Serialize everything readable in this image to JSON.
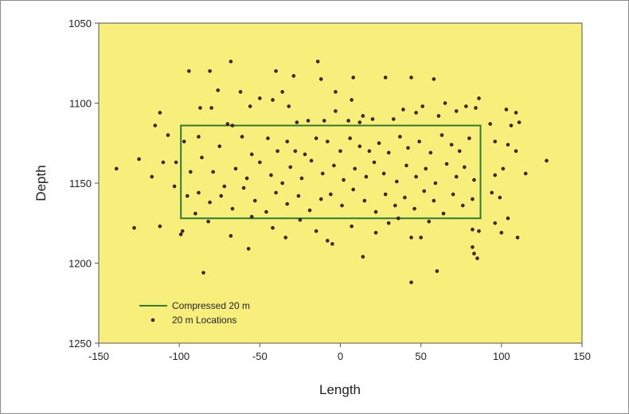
{
  "chart_data": {
    "type": "scatter",
    "title": "",
    "xlabel": "Length",
    "ylabel": "Depth",
    "xlim": [
      -150,
      150
    ],
    "ylim": [
      1050,
      1250
    ],
    "y_inverted": true,
    "x_ticks": [
      -150,
      -100,
      -50,
      0,
      50,
      100,
      150
    ],
    "y_ticks": [
      1050,
      1100,
      1150,
      1200,
      1250
    ],
    "grid": false,
    "plot_background": "#f7ee7c",
    "legend_position": "bottom-left",
    "series": [
      {
        "name": "Compressed 20 m",
        "kind": "rectangle",
        "color": "#2e7d32",
        "x_range": [
          -99,
          87
        ],
        "y_range": [
          1114,
          1172
        ]
      },
      {
        "name": "20 m Locations",
        "kind": "points",
        "color": "#3a2424",
        "points": [
          [
            -94,
            1080
          ],
          [
            -81,
            1080
          ],
          [
            -68,
            1074
          ],
          [
            -40,
            1080
          ],
          [
            -29,
            1083
          ],
          [
            -14,
            1074
          ],
          [
            -36,
            1093
          ],
          [
            -12,
            1085
          ],
          [
            -3,
            1093
          ],
          [
            7,
            1098
          ],
          [
            8,
            1084
          ],
          [
            14,
            1108
          ],
          [
            28,
            1084
          ],
          [
            44,
            1084
          ],
          [
            58,
            1085
          ],
          [
            61,
            1108
          ],
          [
            86,
            1097
          ],
          [
            -76,
            1092
          ],
          [
            -62,
            1093
          ],
          [
            -87,
            1103
          ],
          [
            -80,
            1103
          ],
          [
            -67,
            1114
          ],
          [
            -56,
            1102
          ],
          [
            -50,
            1097
          ],
          [
            -42,
            1098
          ],
          [
            -32,
            1102
          ],
          [
            -27,
            1112
          ],
          [
            -20,
            1111
          ],
          [
            -10,
            1111
          ],
          [
            -3,
            1105
          ],
          [
            5,
            1111
          ],
          [
            12,
            1112
          ],
          [
            20,
            1110
          ],
          [
            33,
            1110
          ],
          [
            39,
            1104
          ],
          [
            47,
            1106
          ],
          [
            51,
            1102
          ],
          [
            65,
            1100
          ],
          [
            72,
            1105
          ],
          [
            78,
            1102
          ],
          [
            84,
            1103
          ],
          [
            93,
            1113
          ],
          [
            103,
            1104
          ],
          [
            106,
            1114
          ],
          [
            109,
            1106
          ],
          [
            111,
            1112
          ],
          [
            -112,
            1106
          ],
          [
            -115,
            1114
          ],
          [
            -107,
            1120
          ],
          [
            -97,
            1124
          ],
          [
            -88,
            1121
          ],
          [
            -75,
            1127
          ],
          [
            -70,
            1113
          ],
          [
            -61,
            1121
          ],
          [
            -55,
            1132
          ],
          [
            -45,
            1122
          ],
          [
            -39,
            1130
          ],
          [
            -33,
            1124
          ],
          [
            -28,
            1130
          ],
          [
            -22,
            1132
          ],
          [
            -15,
            1122
          ],
          [
            -8,
            1124
          ],
          [
            0,
            1130
          ],
          [
            6,
            1122
          ],
          [
            12,
            1127
          ],
          [
            18,
            1130
          ],
          [
            24,
            1125
          ],
          [
            30,
            1131
          ],
          [
            37,
            1121
          ],
          [
            42,
            1128
          ],
          [
            49,
            1124
          ],
          [
            56,
            1131
          ],
          [
            63,
            1120
          ],
          [
            69,
            1126
          ],
          [
            74,
            1130
          ],
          [
            80,
            1122
          ],
          [
            96,
            1124
          ],
          [
            104,
            1126
          ],
          [
            109,
            1130
          ],
          [
            -102,
            1137
          ],
          [
            -93,
            1143
          ],
          [
            -86,
            1134
          ],
          [
            -79,
            1143
          ],
          [
            -72,
            1152
          ],
          [
            -65,
            1141
          ],
          [
            -58,
            1147
          ],
          [
            -50,
            1137
          ],
          [
            -43,
            1145
          ],
          [
            -36,
            1150
          ],
          [
            -31,
            1140
          ],
          [
            -24,
            1147
          ],
          [
            -18,
            1136
          ],
          [
            -11,
            1144
          ],
          [
            -4,
            1139
          ],
          [
            2,
            1148
          ],
          [
            9,
            1141
          ],
          [
            16,
            1146
          ],
          [
            21,
            1137
          ],
          [
            27,
            1144
          ],
          [
            35,
            1149
          ],
          [
            41,
            1139
          ],
          [
            47,
            1146
          ],
          [
            53,
            1141
          ],
          [
            59,
            1150
          ],
          [
            66,
            1138
          ],
          [
            72,
            1146
          ],
          [
            77,
            1140
          ],
          [
            83,
            1148
          ],
          [
            96,
            1145
          ],
          [
            101,
            1141
          ],
          [
            -125,
            1135
          ],
          [
            -139,
            1141
          ],
          [
            -117,
            1146
          ],
          [
            -110,
            1137
          ],
          [
            -103,
            1152
          ],
          [
            -95,
            1158
          ],
          [
            -88,
            1156
          ],
          [
            -81,
            1162
          ],
          [
            -74,
            1158
          ],
          [
            -67,
            1166
          ],
          [
            -60,
            1153
          ],
          [
            -53,
            1161
          ],
          [
            -46,
            1168
          ],
          [
            -40,
            1156
          ],
          [
            -33,
            1163
          ],
          [
            -26,
            1158
          ],
          [
            -19,
            1167
          ],
          [
            -12,
            1160
          ],
          [
            -6,
            1157
          ],
          [
            1,
            1164
          ],
          [
            8,
            1154
          ],
          [
            15,
            1161
          ],
          [
            22,
            1168
          ],
          [
            28,
            1157
          ],
          [
            34,
            1164
          ],
          [
            40,
            1159
          ],
          [
            46,
            1166
          ],
          [
            52,
            1155
          ],
          [
            58,
            1161
          ],
          [
            64,
            1169
          ],
          [
            70,
            1157
          ],
          [
            76,
            1164
          ],
          [
            82,
            1160
          ],
          [
            94,
            1156
          ],
          [
            99,
            1159
          ],
          [
            -98,
            1180
          ],
          [
            -90,
            1169
          ],
          [
            -82,
            1174
          ],
          [
            -68,
            1183
          ],
          [
            -55,
            1171
          ],
          [
            -42,
            1178
          ],
          [
            -34,
            1184
          ],
          [
            -25,
            1173
          ],
          [
            -15,
            1180
          ],
          [
            -8,
            1186
          ],
          [
            -5,
            1188
          ],
          [
            7,
            1177
          ],
          [
            14,
            1196
          ],
          [
            22,
            1181
          ],
          [
            36,
            1172
          ],
          [
            44,
            1184
          ],
          [
            50,
            1184
          ],
          [
            55,
            1174
          ],
          [
            60,
            1205
          ],
          [
            82,
            1179
          ],
          [
            82,
            1190
          ],
          [
            83,
            1194
          ],
          [
            86,
            1180
          ],
          [
            96,
            1175
          ],
          [
            100,
            1181
          ],
          [
            104,
            1172
          ],
          [
            110,
            1184
          ],
          [
            115,
            1144
          ],
          [
            128,
            1136
          ],
          [
            -128,
            1178
          ],
          [
            -112,
            1177
          ],
          [
            -99,
            1182
          ],
          [
            -85,
            1206
          ],
          [
            44,
            1212
          ],
          [
            85,
            1197
          ],
          [
            -57,
            1191
          ],
          [
            30,
            1175
          ]
        ]
      }
    ]
  }
}
